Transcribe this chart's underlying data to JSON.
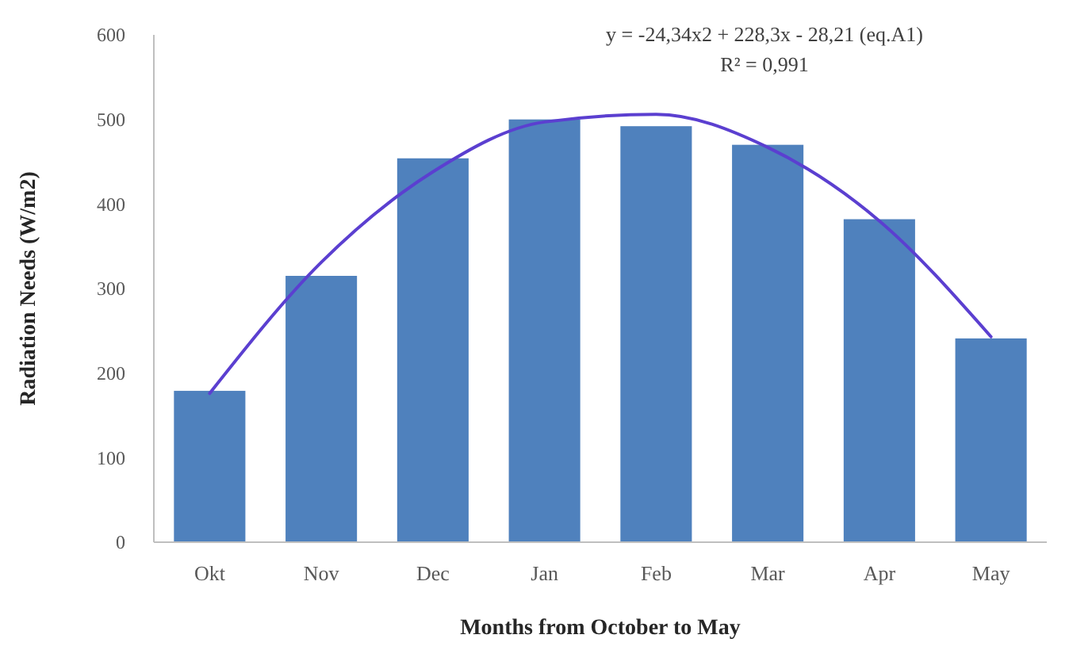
{
  "chart_data": {
    "type": "bar",
    "xlabel": "Months from October to May",
    "ylabel": "Radiation Needs (W/m2)",
    "annotations": [
      "y = -24,34x2 + 228,3x - 28,21 (eq.A1)",
      "R² = 0,991"
    ],
    "categories": [
      "Okt",
      "Nov",
      "Dec",
      "Jan",
      "Feb",
      "Mar",
      "Apr",
      "May"
    ],
    "series": [
      {
        "color": "#4f81bd",
        "values": [
          179,
          315,
          454,
          500,
          492,
          470,
          382,
          241
        ]
      },
      {
        "type": "line",
        "color": "#5b3fd0",
        "values": [
          176,
          331,
          438,
          497,
          506,
          467,
          380,
          243
        ]
      }
    ],
    "ylim": [
      0,
      600
    ],
    "yticks": [
      0,
      100,
      200,
      300,
      400,
      500,
      600
    ],
    "grid": false
  }
}
